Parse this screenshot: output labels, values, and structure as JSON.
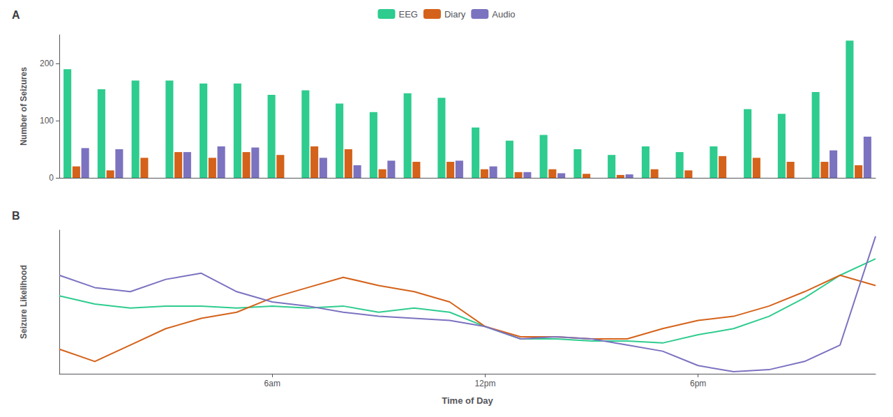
{
  "chart_data": [
    {
      "type": "bar",
      "title": "A",
      "categories": [
        null,
        null,
        null,
        null,
        null,
        null,
        null,
        null,
        null,
        null,
        null,
        null,
        null,
        null,
        null,
        null,
        null,
        null,
        null,
        null,
        null,
        null,
        null,
        null
      ],
      "series": [
        {
          "name": "EEG",
          "color": "#2ecc8e",
          "values": [
            190,
            155,
            170,
            170,
            165,
            165,
            145,
            153,
            130,
            115,
            148,
            140,
            88,
            65,
            75,
            50,
            40,
            55,
            45,
            55,
            120,
            112,
            150,
            240
          ]
        },
        {
          "name": "Diary",
          "color": "#d4621a",
          "values": [
            20,
            13,
            35,
            45,
            35,
            45,
            40,
            55,
            50,
            15,
            28,
            28,
            15,
            10,
            15,
            7,
            5,
            15,
            13,
            38,
            35,
            28,
            28,
            22
          ]
        },
        {
          "name": "Audio",
          "color": "#7b72c0",
          "values": [
            52,
            50,
            0,
            45,
            55,
            53,
            0,
            35,
            22,
            30,
            0,
            30,
            20,
            10,
            8,
            0,
            6,
            0,
            0,
            0,
            0,
            0,
            48,
            72
          ]
        }
      ],
      "ylabel": "Number of Seizures",
      "ylim": [
        0,
        250
      ],
      "yticks": [
        0,
        100,
        200
      ],
      "grid": false,
      "legend": "top",
      "tick_labels": "y"
    },
    {
      "type": "line",
      "title": "B",
      "x": [
        0,
        1,
        2,
        3,
        4,
        5,
        6,
        7,
        8,
        9,
        10,
        11,
        12,
        13,
        14,
        15,
        16,
        17,
        18,
        19,
        20,
        21,
        22,
        23
      ],
      "series": [
        {
          "color": "#2ecc8e",
          "values": [
            0.68,
            0.64,
            0.62,
            0.63,
            0.63,
            0.62,
            0.63,
            0.62,
            0.63,
            0.6,
            0.62,
            0.6,
            0.53,
            0.47,
            0.47,
            0.46,
            0.46,
            0.45,
            0.49,
            0.52,
            0.58,
            0.67,
            0.78,
            0.86
          ]
        },
        {
          "color": "#d4621a",
          "values": [
            0.42,
            0.36,
            0.44,
            0.52,
            0.57,
            0.6,
            0.67,
            0.72,
            0.77,
            0.73,
            0.7,
            0.65,
            0.53,
            0.48,
            0.48,
            0.47,
            0.47,
            0.52,
            0.56,
            0.58,
            0.63,
            0.7,
            0.78,
            0.73
          ]
        },
        {
          "color": "#7b72c0",
          "values": [
            0.78,
            0.72,
            0.7,
            0.76,
            0.79,
            0.7,
            0.65,
            0.63,
            0.6,
            0.58,
            0.57,
            0.56,
            0.53,
            0.47,
            0.48,
            0.47,
            0.44,
            0.41,
            0.34,
            0.31,
            0.32,
            0.36,
            0.44,
            0.97
          ]
        }
      ],
      "xlabel": "Time of Day",
      "ylabel": "Seizure Likelihood",
      "xlim": [
        0,
        23
      ],
      "xticks": [
        {
          "value": 6,
          "label": "6am"
        },
        {
          "value": 12,
          "label": "12pm"
        },
        {
          "value": 18,
          "label": "6pm"
        }
      ],
      "ylim": [
        0.3,
        1.0
      ],
      "yticks": [],
      "grid": false,
      "tick_labels": "x"
    }
  ]
}
